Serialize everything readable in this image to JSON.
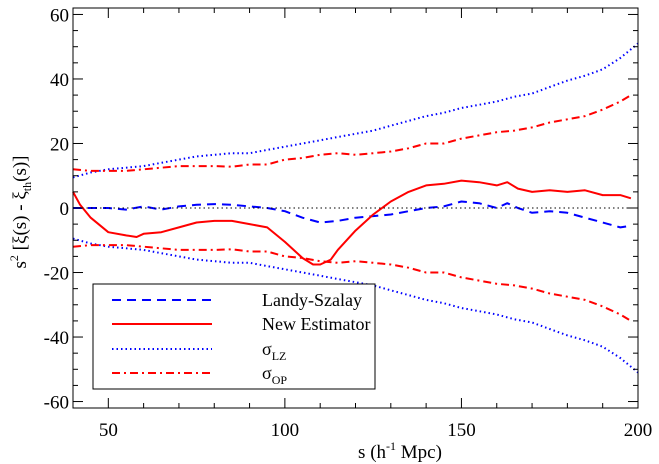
{
  "chart_data": {
    "type": "line",
    "xlabel": "s (h^-1 Mpc)",
    "ylabel": "s^2 [ξ(s) - ξth(s)]",
    "xlim": [
      40,
      200
    ],
    "ylim": [
      -62,
      62
    ],
    "x_ticks": [
      50,
      100,
      150,
      200
    ],
    "y_ticks": [
      -60,
      -40,
      -20,
      0,
      20,
      40,
      60
    ],
    "x_tick_labels": [
      "50",
      "100",
      "150",
      "200"
    ],
    "y_tick_labels": [
      "-60",
      "-40",
      "-20",
      "0",
      "20",
      "40",
      "60"
    ],
    "zero_line": true,
    "legend_position": "bottom-left",
    "legend": [
      {
        "label": "Landy-Szalay",
        "main": "",
        "sub": ""
      },
      {
        "label": "New Estimator",
        "main": "",
        "sub": ""
      },
      {
        "label": "",
        "main": "σ",
        "sub": "LZ"
      },
      {
        "label": "",
        "main": "σ",
        "sub": "OP"
      }
    ],
    "series": [
      {
        "key": "ls",
        "color": "#0000ff",
        "dash": "9,6",
        "x": [
          40,
          45,
          50,
          55,
          60,
          65,
          70,
          75,
          80,
          85,
          90,
          95,
          100,
          105,
          110,
          115,
          120,
          125,
          130,
          135,
          140,
          145,
          150,
          155,
          160,
          163,
          166,
          170,
          175,
          180,
          185,
          190,
          195,
          198
        ],
        "y": [
          0,
          0,
          0,
          -0.5,
          0.5,
          -0.5,
          0.5,
          1,
          1.2,
          1,
          0.5,
          0,
          -1,
          -3,
          -4.5,
          -4,
          -3,
          -2.5,
          -2,
          -1,
          0,
          0.5,
          2,
          1.5,
          0,
          1.5,
          0,
          -1.5,
          -1,
          -1.5,
          -3,
          -4.5,
          -6,
          -5.5
        ]
      },
      {
        "key": "new",
        "color": "#ff0000",
        "dash": "",
        "x": [
          40,
          42,
          45,
          50,
          55,
          58,
          60,
          65,
          70,
          75,
          80,
          85,
          90,
          95,
          100,
          105,
          108,
          110,
          113,
          115,
          120,
          125,
          130,
          135,
          140,
          145,
          150,
          155,
          160,
          163,
          166,
          170,
          175,
          180,
          185,
          190,
          195,
          198
        ],
        "y": [
          5,
          1,
          -3,
          -7.5,
          -8.5,
          -9,
          -8,
          -7.5,
          -6,
          -4.5,
          -4,
          -4,
          -5,
          -6,
          -10.5,
          -15.5,
          -17.5,
          -17.5,
          -16,
          -13,
          -7,
          -2,
          2,
          5,
          7,
          7.5,
          8.5,
          8,
          7,
          8,
          6,
          5,
          5.5,
          5,
          5.5,
          4,
          4,
          3
        ]
      },
      {
        "key": "lz",
        "color": "#0000ff",
        "dash": "1.5,3",
        "x": [
          40,
          45,
          50,
          55,
          60,
          65,
          70,
          75,
          80,
          85,
          90,
          95,
          100,
          105,
          110,
          115,
          120,
          125,
          130,
          135,
          140,
          145,
          150,
          155,
          160,
          165,
          170,
          175,
          180,
          185,
          190,
          195,
          200
        ],
        "y": [
          9.5,
          11,
          12,
          12.5,
          13,
          14,
          15,
          16,
          16.5,
          17,
          17,
          18,
          19,
          20,
          21,
          22,
          23,
          24,
          25.5,
          27,
          28.5,
          29.5,
          31,
          32,
          33,
          34.5,
          35.5,
          37.5,
          39.5,
          41,
          43,
          46.5,
          51
        ]
      },
      {
        "key": "lz_neg",
        "color": "#0000ff",
        "dash": "1.5,3",
        "x": [
          40,
          45,
          50,
          55,
          60,
          65,
          70,
          75,
          80,
          85,
          90,
          95,
          100,
          105,
          110,
          115,
          120,
          125,
          130,
          135,
          140,
          145,
          150,
          155,
          160,
          165,
          170,
          175,
          180,
          185,
          190,
          195,
          200
        ],
        "y": [
          -9.5,
          -11,
          -12,
          -12.5,
          -13,
          -14,
          -15,
          -16,
          -16.5,
          -17,
          -17,
          -18,
          -19,
          -20,
          -21,
          -22,
          -23,
          -24,
          -25.5,
          -27,
          -28.5,
          -29.5,
          -31,
          -32,
          -33,
          -34.5,
          -35.5,
          -37.5,
          -39.5,
          -41,
          -43,
          -46.5,
          -51
        ]
      },
      {
        "key": "op",
        "color": "#ff0000",
        "dash": "8,4,2,4",
        "x": [
          40,
          45,
          50,
          55,
          60,
          65,
          70,
          75,
          80,
          85,
          90,
          95,
          100,
          105,
          110,
          115,
          120,
          125,
          130,
          135,
          140,
          145,
          150,
          155,
          160,
          165,
          170,
          175,
          180,
          185,
          190,
          195,
          198
        ],
        "y": [
          12,
          11.5,
          11.5,
          11.5,
          12,
          12.5,
          13,
          13,
          13,
          12.8,
          13.5,
          13.5,
          15,
          15.5,
          16.5,
          17,
          16.5,
          17,
          17.5,
          18.5,
          20,
          20,
          21.5,
          22.5,
          23.5,
          24,
          25,
          26.5,
          27.5,
          28.5,
          30.5,
          33,
          35
        ]
      },
      {
        "key": "op_neg",
        "color": "#ff0000",
        "dash": "8,4,2,4",
        "x": [
          40,
          45,
          50,
          55,
          60,
          65,
          70,
          75,
          80,
          85,
          90,
          95,
          100,
          105,
          110,
          115,
          120,
          125,
          130,
          135,
          140,
          145,
          150,
          155,
          160,
          165,
          170,
          175,
          180,
          185,
          190,
          195,
          198
        ],
        "y": [
          -12,
          -11.5,
          -11.5,
          -11.5,
          -12,
          -12.5,
          -13,
          -13,
          -13,
          -12.8,
          -13.5,
          -13.5,
          -15,
          -15.5,
          -16.5,
          -17,
          -16.5,
          -17,
          -17.5,
          -18.5,
          -20,
          -20,
          -21.5,
          -22.5,
          -23.5,
          -24,
          -25,
          -26.5,
          -27.5,
          -28.5,
          -30.5,
          -33,
          -35
        ]
      }
    ]
  }
}
